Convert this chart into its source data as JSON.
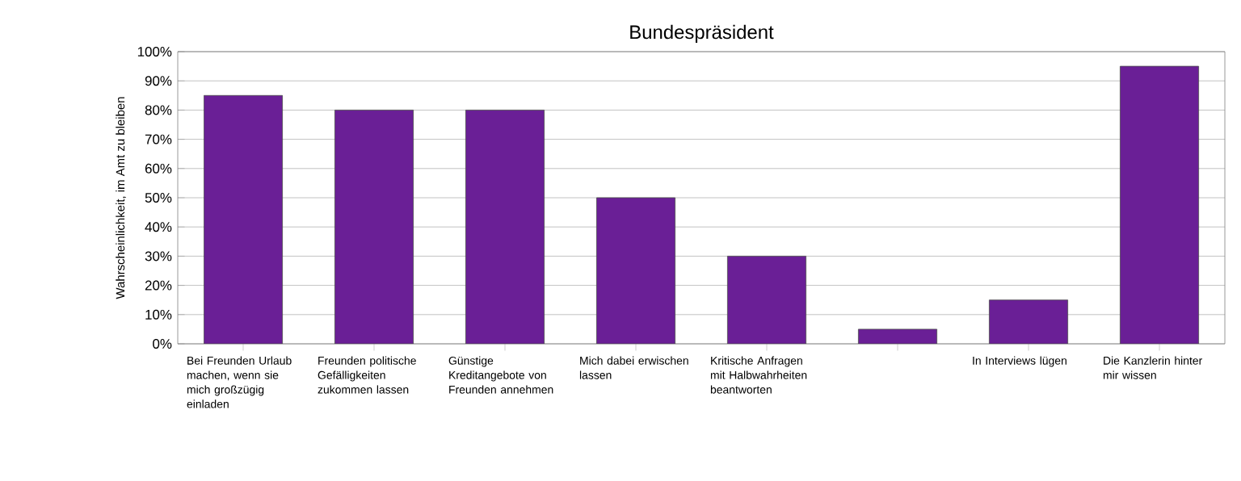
{
  "chart_data": {
    "type": "bar",
    "title": "Bundespräsident",
    "ylabel": "Wahrscheinlichkeit, im Amt zu bleiben",
    "categories": [
      "Bei Freunden Urlaub machen, wenn sie mich großzügig einladen",
      "Freunden politische Gefälligkeiten zukommen lassen",
      "Günstige Kreditangebote von Freunden annehmen",
      "Mich dabei erwischen lassen",
      "Kritische Anfragen mit Halbwahrheiten beantworten",
      null,
      "In Interviews lügen",
      "Die Kanzlerin hinter mir wissen"
    ],
    "values": [
      85,
      80,
      80,
      50,
      30,
      5,
      15,
      95
    ],
    "color": "#6a1f96",
    "ylim": [
      0,
      100
    ],
    "yticks": [
      {
        "value": 0,
        "label": "0%"
      },
      {
        "value": 10,
        "label": "10%"
      },
      {
        "value": 20,
        "label": "20%"
      },
      {
        "value": 30,
        "label": "30%"
      },
      {
        "value": 40,
        "label": "40%"
      },
      {
        "value": 50,
        "label": "50%"
      },
      {
        "value": 60,
        "label": "60%"
      },
      {
        "value": 70,
        "label": "70%"
      },
      {
        "value": 80,
        "label": "80%"
      },
      {
        "value": 90,
        "label": "90%"
      },
      {
        "value": 100,
        "label": "100%"
      }
    ],
    "grid": "y"
  }
}
